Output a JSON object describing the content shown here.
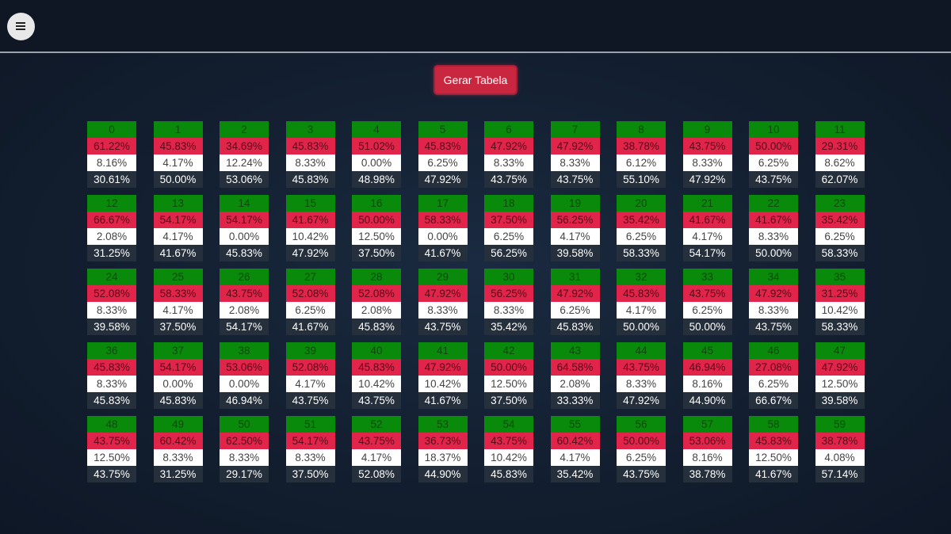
{
  "button": "Gerar Tabela",
  "cells": [
    [
      "0",
      "61.22%",
      "8.16%",
      "30.61%"
    ],
    [
      "1",
      "45.83%",
      "4.17%",
      "50.00%"
    ],
    [
      "2",
      "34.69%",
      "12.24%",
      "53.06%"
    ],
    [
      "3",
      "45.83%",
      "8.33%",
      "45.83%"
    ],
    [
      "4",
      "51.02%",
      "0.00%",
      "48.98%"
    ],
    [
      "5",
      "45.83%",
      "6.25%",
      "47.92%"
    ],
    [
      "6",
      "47.92%",
      "8.33%",
      "43.75%"
    ],
    [
      "7",
      "47.92%",
      "8.33%",
      "43.75%"
    ],
    [
      "8",
      "38.78%",
      "6.12%",
      "55.10%"
    ],
    [
      "9",
      "43.75%",
      "8.33%",
      "47.92%"
    ],
    [
      "10",
      "50.00%",
      "6.25%",
      "43.75%"
    ],
    [
      "11",
      "29.31%",
      "8.62%",
      "62.07%"
    ],
    [
      "12",
      "66.67%",
      "2.08%",
      "31.25%"
    ],
    [
      "13",
      "54.17%",
      "4.17%",
      "41.67%"
    ],
    [
      "14",
      "54.17%",
      "0.00%",
      "45.83%"
    ],
    [
      "15",
      "41.67%",
      "10.42%",
      "47.92%"
    ],
    [
      "16",
      "50.00%",
      "12.50%",
      "37.50%"
    ],
    [
      "17",
      "58.33%",
      "0.00%",
      "41.67%"
    ],
    [
      "18",
      "37.50%",
      "6.25%",
      "56.25%"
    ],
    [
      "19",
      "56.25%",
      "4.17%",
      "39.58%"
    ],
    [
      "20",
      "35.42%",
      "6.25%",
      "58.33%"
    ],
    [
      "21",
      "41.67%",
      "4.17%",
      "54.17%"
    ],
    [
      "22",
      "41.67%",
      "8.33%",
      "50.00%"
    ],
    [
      "23",
      "35.42%",
      "6.25%",
      "58.33%"
    ],
    [
      "24",
      "52.08%",
      "8.33%",
      "39.58%"
    ],
    [
      "25",
      "58.33%",
      "4.17%",
      "37.50%"
    ],
    [
      "26",
      "43.75%",
      "2.08%",
      "54.17%"
    ],
    [
      "27",
      "52.08%",
      "6.25%",
      "41.67%"
    ],
    [
      "28",
      "52.08%",
      "2.08%",
      "45.83%"
    ],
    [
      "29",
      "47.92%",
      "8.33%",
      "43.75%"
    ],
    [
      "30",
      "56.25%",
      "8.33%",
      "35.42%"
    ],
    [
      "31",
      "47.92%",
      "6.25%",
      "45.83%"
    ],
    [
      "32",
      "45.83%",
      "4.17%",
      "50.00%"
    ],
    [
      "33",
      "43.75%",
      "6.25%",
      "50.00%"
    ],
    [
      "34",
      "47.92%",
      "8.33%",
      "43.75%"
    ],
    [
      "35",
      "31.25%",
      "10.42%",
      "58.33%"
    ],
    [
      "36",
      "45.83%",
      "8.33%",
      "45.83%"
    ],
    [
      "37",
      "54.17%",
      "0.00%",
      "45.83%"
    ],
    [
      "38",
      "53.06%",
      "0.00%",
      "46.94%"
    ],
    [
      "39",
      "52.08%",
      "4.17%",
      "43.75%"
    ],
    [
      "40",
      "45.83%",
      "10.42%",
      "43.75%"
    ],
    [
      "41",
      "47.92%",
      "10.42%",
      "41.67%"
    ],
    [
      "42",
      "50.00%",
      "12.50%",
      "37.50%"
    ],
    [
      "43",
      "64.58%",
      "2.08%",
      "33.33%"
    ],
    [
      "44",
      "43.75%",
      "8.33%",
      "47.92%"
    ],
    [
      "45",
      "46.94%",
      "8.16%",
      "44.90%"
    ],
    [
      "46",
      "27.08%",
      "6.25%",
      "66.67%"
    ],
    [
      "47",
      "47.92%",
      "12.50%",
      "39.58%"
    ],
    [
      "48",
      "43.75%",
      "12.50%",
      "43.75%"
    ],
    [
      "49",
      "60.42%",
      "8.33%",
      "31.25%"
    ],
    [
      "50",
      "62.50%",
      "8.33%",
      "29.17%"
    ],
    [
      "51",
      "54.17%",
      "8.33%",
      "37.50%"
    ],
    [
      "52",
      "43.75%",
      "4.17%",
      "52.08%"
    ],
    [
      "53",
      "36.73%",
      "18.37%",
      "44.90%"
    ],
    [
      "54",
      "43.75%",
      "10.42%",
      "45.83%"
    ],
    [
      "55",
      "60.42%",
      "4.17%",
      "35.42%"
    ],
    [
      "56",
      "50.00%",
      "6.25%",
      "43.75%"
    ],
    [
      "57",
      "53.06%",
      "8.16%",
      "38.78%"
    ],
    [
      "58",
      "45.83%",
      "12.50%",
      "41.67%"
    ],
    [
      "59",
      "38.78%",
      "4.08%",
      "57.14%"
    ]
  ]
}
